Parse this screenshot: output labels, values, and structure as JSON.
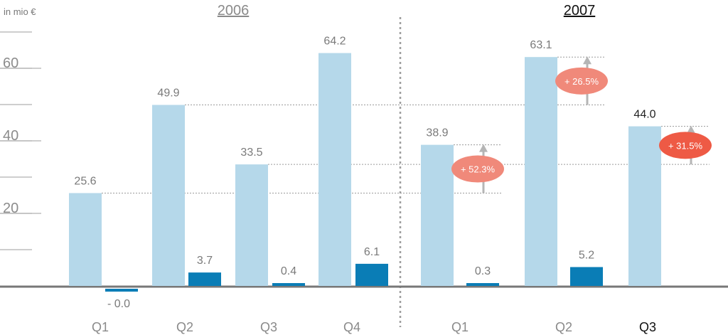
{
  "chart_data": {
    "type": "bar",
    "unit_label": "in mio €",
    "yticks": [
      "60",
      "40",
      "20"
    ],
    "ylim": [
      0,
      70
    ],
    "grid": false,
    "groups": [
      "2006",
      "2007"
    ],
    "categories": [
      {
        "label": "Q1",
        "group": "2006"
      },
      {
        "label": "Q2",
        "group": "2006"
      },
      {
        "label": "Q3",
        "group": "2006"
      },
      {
        "label": "Q4",
        "group": "2006"
      },
      {
        "label": "Q1",
        "group": "2007"
      },
      {
        "label": "Q2",
        "group": "2007"
      },
      {
        "label": "Q3",
        "group": "2007"
      }
    ],
    "series": [
      {
        "color": "#b5d8ea",
        "values": [
          25.6,
          49.9,
          33.5,
          64.2,
          38.9,
          63.1,
          44.0
        ],
        "labels": [
          "25.6",
          "49.9",
          "33.5",
          "64.2",
          "38.9",
          "63.1",
          "44.0"
        ]
      },
      {
        "color": "#0a7db6",
        "values": [
          -0.0,
          3.7,
          0.4,
          6.1,
          0.3,
          5.2,
          null
        ],
        "labels": [
          "- 0.0",
          "3.7",
          "0.4",
          "6.1",
          "0.3",
          "5.2",
          null
        ]
      }
    ],
    "growth_annotations": [
      {
        "category_index": 4,
        "text": "+ 52.3%",
        "from": 25.6,
        "to": 38.9,
        "color": "#f0897a"
      },
      {
        "category_index": 5,
        "text": "+ 26.5%",
        "from": 49.9,
        "to": 63.1,
        "color": "#f0897a"
      },
      {
        "category_index": 6,
        "text": "+ 31.5%",
        "from": 33.5,
        "to": 44.0,
        "color": "#ee5a45"
      }
    ]
  }
}
